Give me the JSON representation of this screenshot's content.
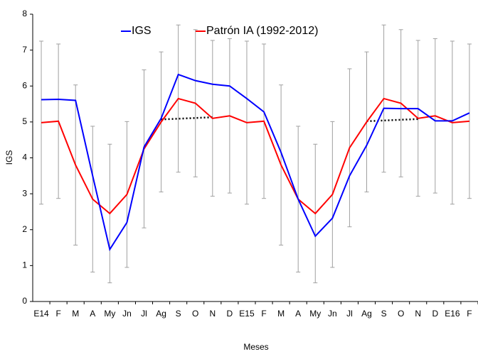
{
  "chart_data": {
    "type": "line",
    "ylabel": "IGS",
    "xlabel": "Meses",
    "categories": [
      "E14",
      "F",
      "M",
      "A",
      "My",
      "Jn",
      "Jl",
      "Ag",
      "S",
      "O",
      "N",
      "D",
      "E15",
      "F",
      "M",
      "A",
      "My",
      "Jn",
      "Jl",
      "Ag",
      "S",
      "O",
      "N",
      "D",
      "E16",
      "F"
    ],
    "series": [
      {
        "name": "IGS",
        "color": "#0000ff",
        "values": [
          5.62,
          5.63,
          5.6,
          3.5,
          1.45,
          2.2,
          4.3,
          5.1,
          6.32,
          6.15,
          6.05,
          6.0,
          5.65,
          5.28,
          4.15,
          2.85,
          1.82,
          2.32,
          3.5,
          4.35,
          5.38,
          5.37,
          5.37,
          5.03,
          5.03,
          5.25
        ]
      },
      {
        "name": "Patrón IA (1992-2012)",
        "color": "#ff0000",
        "values": [
          4.98,
          5.02,
          3.8,
          2.85,
          2.45,
          2.98,
          4.25,
          5.0,
          5.65,
          5.52,
          5.1,
          5.17,
          4.98,
          5.02,
          3.8,
          2.85,
          2.45,
          2.98,
          4.28,
          5.0,
          5.65,
          5.52,
          5.1,
          5.17,
          4.98,
          5.02
        ],
        "error": [
          2.27,
          2.15,
          2.23,
          2.03,
          1.93,
          2.03,
          2.2,
          1.95,
          2.05,
          2.05,
          2.17,
          2.15,
          2.27,
          2.15,
          2.23,
          2.03,
          1.93,
          2.03,
          2.2,
          1.95,
          2.05,
          2.05,
          2.17,
          2.15,
          2.27,
          2.15
        ],
        "error_color": "#a0a0a0"
      }
    ],
    "trendlines": [
      {
        "start_index": 7,
        "end_index": 10,
        "values": [
          5.07,
          5.13
        ],
        "color": "#000000"
      },
      {
        "start_index": 19,
        "end_index": 22,
        "values": [
          5.02,
          5.08
        ],
        "color": "#000000"
      }
    ],
    "ylim": [
      0,
      8
    ],
    "yticks": [
      0,
      1,
      2,
      3,
      4,
      5,
      6,
      7,
      8
    ],
    "grid": false,
    "legend": "top"
  }
}
